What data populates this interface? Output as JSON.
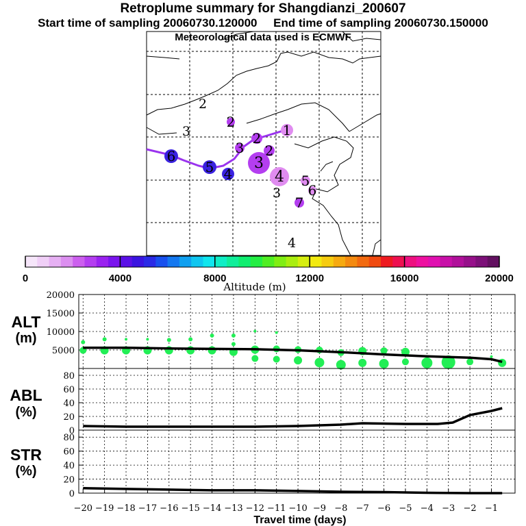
{
  "title": "Retroplume summary for Shangdianzi_200607",
  "subtitle_start": "Start time of sampling 20060730.120000",
  "subtitle_end": "End time of sampling 20060730.150000",
  "subtitle_met": "Meteorological data used is ECMWF",
  "colors": {
    "point_green": "#22ee55",
    "track_purple": "#9a33ee",
    "cluster_light": "#e08cf0",
    "cluster_mid": "#b43ef0",
    "cluster_dark": "#3a22e0"
  },
  "map": {
    "labels": [
      "2",
      "3",
      "2",
      "1",
      "3",
      "2",
      "3",
      "4",
      "5",
      "6",
      "4",
      "5",
      "6",
      "7",
      "3",
      "4"
    ],
    "clusters": [
      {
        "label": "1",
        "size": "small",
        "shade": "light"
      },
      {
        "label": "2",
        "size": "small",
        "shade": "mid"
      },
      {
        "label": "3",
        "size": "small",
        "shade": "mid"
      },
      {
        "label": "4",
        "size": "small",
        "shade": "dark"
      },
      {
        "label": "5",
        "size": "small",
        "shade": "dark"
      },
      {
        "label": "6",
        "size": "small",
        "shade": "dark"
      },
      {
        "label": "2",
        "size": "small",
        "shade": "mid"
      },
      {
        "label": "2",
        "size": "small",
        "shade": "mid"
      },
      {
        "label": "3",
        "size": "large",
        "shade": "mid"
      },
      {
        "label": "4",
        "size": "large",
        "shade": "light"
      },
      {
        "label": "5",
        "size": "small",
        "shade": "light"
      },
      {
        "label": "6",
        "size": "small",
        "shade": "light"
      },
      {
        "label": "7",
        "size": "small",
        "shade": "mid"
      }
    ]
  },
  "colorbar": {
    "ticks": [
      "0",
      "4000",
      "8000",
      "12000",
      "16000",
      "20000"
    ],
    "label": "Altitude (m)",
    "colors": [
      "#f6e6fa",
      "#f0cff7",
      "#e6b0f3",
      "#dc8ff0",
      "#cc5fee",
      "#b43ef0",
      "#9a22f0",
      "#7a14ee",
      "#5a10e6",
      "#3a14e0",
      "#2a2ae6",
      "#1850ee",
      "#1478f0",
      "#10a0f0",
      "#10c6f0",
      "#10e6ee",
      "#10eec6",
      "#10ee9a",
      "#10ee70",
      "#24ee44",
      "#50ee24",
      "#80ee14",
      "#aaee10",
      "#d6ee10",
      "#f2ea10",
      "#f6cc10",
      "#f6aa10",
      "#f48a10",
      "#f26a10",
      "#f04a10",
      "#ee1a20",
      "#ee1050",
      "#ee1080",
      "#ee10a0",
      "#e010b0",
      "#c810a8",
      "#b0109a",
      "#96108a",
      "#7c1078",
      "#621060"
    ]
  },
  "panels": {
    "alt": {
      "label1": "ALT",
      "label2": "(m)"
    },
    "abl": {
      "label1": "ABL",
      "label2": "(%)"
    },
    "str": {
      "label1": "STR",
      "label2": "(%)"
    }
  },
  "xlabel": "Travel time (days)",
  "chart_data": [
    {
      "type": "line",
      "title": "ALT (m)",
      "ylabel": "ALT (m)",
      "xlabel": "Travel time (days)",
      "xlim": [
        -20.2,
        0.1
      ],
      "ylim": [
        0,
        20000
      ],
      "yticks": [
        5000,
        10000,
        15000,
        20000
      ],
      "ytick_labels": [
        "5000",
        "10000",
        "15000",
        "20000"
      ],
      "grid": true,
      "series": [
        {
          "name": "mean altitude",
          "x": [
            -20,
            -18,
            -16,
            -14,
            -12,
            -10,
            -8,
            -6,
            -4,
            -2,
            -1,
            -0.5
          ],
          "y": [
            5600,
            5600,
            5400,
            5300,
            5200,
            4900,
            4400,
            3800,
            3300,
            2900,
            2500,
            1800
          ]
        }
      ],
      "clusters": {
        "x": [
          -20,
          -20,
          -19,
          -19,
          -18,
          -18,
          -17,
          -17,
          -16,
          -16,
          -15,
          -15,
          -14,
          -14,
          -13,
          -13,
          -13,
          -12,
          -12,
          -12,
          -11,
          -11,
          -11,
          -10,
          -10,
          -9,
          -9,
          -8,
          -8,
          -7,
          -7,
          -6,
          -6,
          -5,
          -5,
          -4,
          -3,
          -2,
          -1,
          -0.5
        ],
        "y": [
          4900,
          7100,
          4900,
          7900,
          4900,
          7900,
          4900,
          7900,
          4900,
          7700,
          4900,
          7900,
          4900,
          8900,
          4500,
          6600,
          8900,
          2700,
          5100,
          10100,
          2500,
          5300,
          9700,
          2200,
          5100,
          1600,
          5000,
          1000,
          4300,
          1500,
          4700,
          1300,
          4800,
          1800,
          4500,
          1500,
          1700,
          1800,
          3200,
          1500
        ],
        "sizes": [
          5,
          3,
          6,
          3,
          6,
          2,
          6,
          2,
          6,
          3,
          6,
          3,
          6,
          3,
          6,
          3,
          3,
          5,
          6,
          2,
          5,
          5,
          2,
          6,
          5,
          7,
          5,
          7,
          5,
          6,
          6,
          7,
          5,
          5,
          6,
          8,
          10,
          5,
          2,
          6
        ]
      }
    },
    {
      "type": "line",
      "title": "ABL (%)",
      "ylabel": "ABL (%)",
      "xlabel": "Travel time (days)",
      "xlim": [
        -20.2,
        0.1
      ],
      "ylim": [
        0,
        90
      ],
      "yticks": [
        0,
        20,
        40,
        60,
        80
      ],
      "ytick_labels": [
        "0",
        "20",
        "40",
        "60",
        "80"
      ],
      "grid": true,
      "series": [
        {
          "name": "ABL fraction",
          "x": [
            -20,
            -18,
            -16,
            -14,
            -12,
            -10,
            -8,
            -7,
            -5,
            -3.5,
            -2.8,
            -2,
            -1,
            -0.5
          ],
          "y": [
            6,
            5,
            5,
            5,
            5,
            6,
            8,
            10,
            9,
            9,
            11,
            22,
            28,
            32
          ]
        }
      ]
    },
    {
      "type": "line",
      "title": "STR (%)",
      "ylabel": "STR (%)",
      "xlabel": "Travel time (days)",
      "xlim": [
        -20.2,
        0.1
      ],
      "ylim": [
        0,
        90
      ],
      "yticks": [
        0,
        20,
        40,
        60,
        80
      ],
      "ytick_labels": [
        "0",
        "20",
        "40",
        "60",
        "80"
      ],
      "grid": true,
      "series": [
        {
          "name": "stratospheric fraction",
          "x": [
            -20,
            -18,
            -16,
            -14,
            -12,
            -10,
            -8,
            -6,
            -4,
            -2,
            -0.5
          ],
          "y": [
            7,
            6,
            5,
            4,
            4,
            3,
            2,
            1.5,
            0.5,
            0,
            0
          ]
        }
      ]
    }
  ],
  "xticks": [
    -20,
    -19,
    -18,
    -17,
    -16,
    -15,
    -14,
    -13,
    -12,
    -11,
    -10,
    -9,
    -8,
    -7,
    -6,
    -5,
    -4,
    -3,
    -2,
    -1
  ],
  "xtick_labels": [
    "−20",
    "−19",
    "−18",
    "−17",
    "−16",
    "−15",
    "−14",
    "−13",
    "−12",
    "−11",
    "−10",
    "−9",
    "−8",
    "−7",
    "−6",
    "−5",
    "−4",
    "−3",
    "−2",
    "−1"
  ]
}
